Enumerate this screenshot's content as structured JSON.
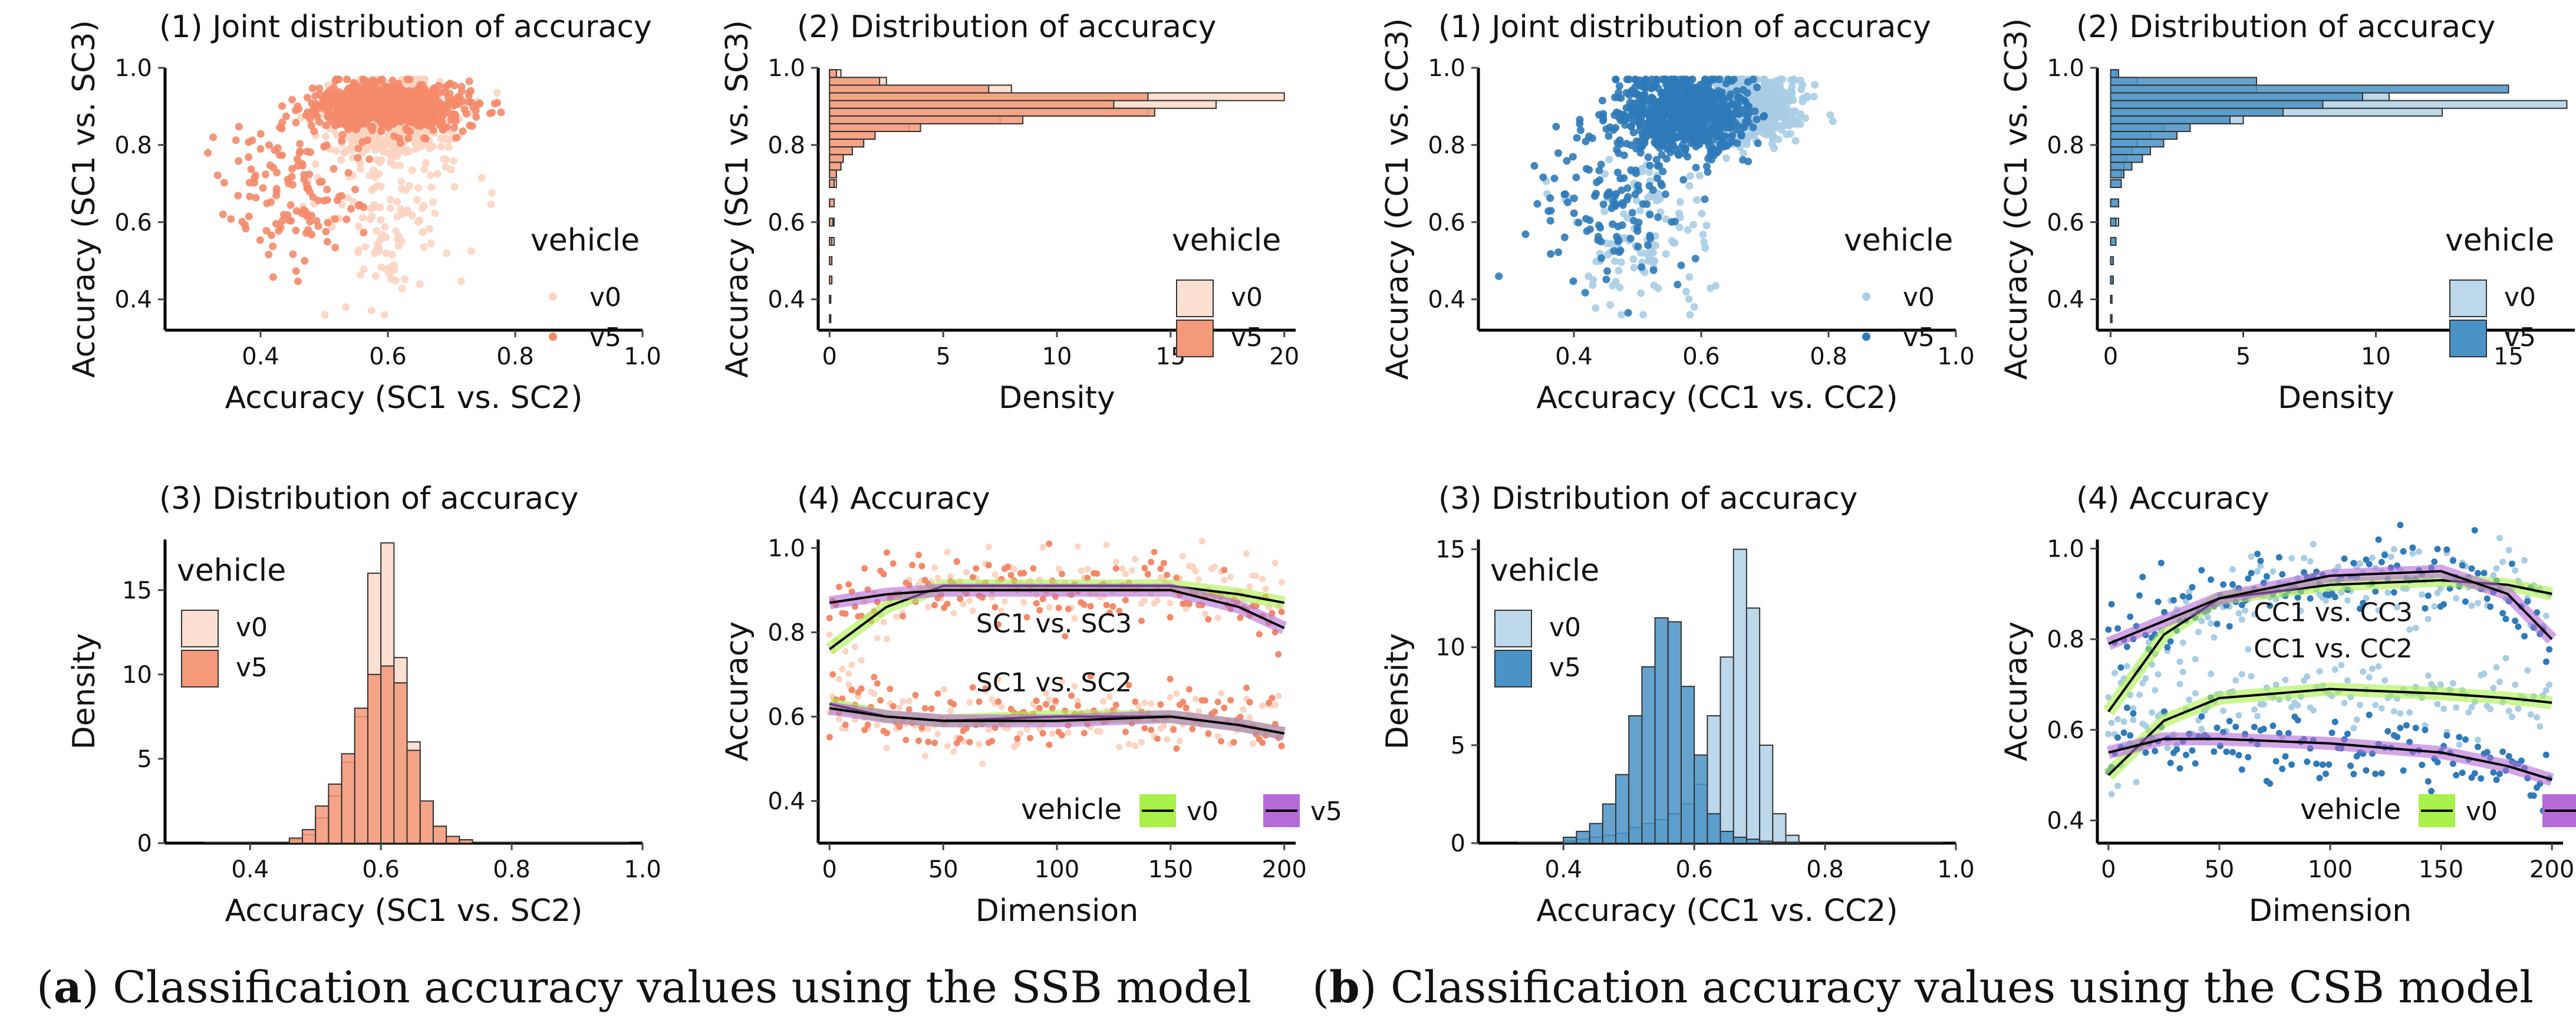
{
  "captions": [
    {
      "tag": "a",
      "text": ") Classification accuracy values using the SSB model",
      "open": "("
    },
    {
      "tag": "b",
      "text": ") Classification accuracy values using the CSB model",
      "open": "("
    }
  ],
  "colors": {
    "ssb_v0": "#fde0d2",
    "ssb_v5": "#f4997a",
    "ssb_v5_point": "#f4896a",
    "ssb_v0_point": "#fbd4c2",
    "csb_v0": "#bcd8ea",
    "csb_v5": "#4a93c6",
    "csb_v5_point": "#2f7ab8",
    "csb_v0_point": "#a9cde4",
    "smooth_v0": "#a8f04a",
    "smooth_v5": "#b46bd6",
    "smooth_line": "#000000"
  },
  "legend": {
    "title": "vehicle",
    "v0": "v0",
    "v5": "v5"
  },
  "chart_data": [
    {
      "id": "ssb1",
      "type": "scatter",
      "panel": "(a)",
      "title": "(1) Joint distribution of accuracy",
      "xlabel": "Accuracy (SC1 vs. SC2)",
      "ylabel": "Accuracy (SC1 vs. SC3)",
      "xlim": [
        0.25,
        1.0
      ],
      "ylim": [
        0.32,
        1.0
      ],
      "xticks": [
        "0.4",
        "0.6",
        "0.8",
        "1.0"
      ],
      "yticks": [
        "0.4",
        "0.6",
        "0.8",
        "1.0"
      ],
      "series": [
        {
          "name": "v0",
          "center": [
            0.6,
            0.86
          ],
          "spread": [
            0.05,
            0.05
          ],
          "tail": [
            0.6,
            0.58
          ],
          "count": 700
        },
        {
          "name": "v5",
          "center": [
            0.6,
            0.9
          ],
          "spread": [
            0.06,
            0.03
          ],
          "tail": [
            0.45,
            0.7
          ],
          "count": 900
        }
      ]
    },
    {
      "id": "ssb2",
      "type": "bar",
      "orientation": "horizontal",
      "panel": "(a)",
      "title": "(2) Distribution of accuracy",
      "xlabel": "Density",
      "ylabel": "Accuracy (SC1 vs. SC3)",
      "xlim": [
        -0.5,
        20.5
      ],
      "ylim": [
        0.32,
        1.0
      ],
      "xticks": [
        "0",
        "5",
        "10",
        "15",
        "20"
      ],
      "yticks": [
        "0.4",
        "0.6",
        "0.8",
        "1.0"
      ],
      "bins": [
        0.985,
        0.965,
        0.945,
        0.925,
        0.905,
        0.885,
        0.865,
        0.845,
        0.825,
        0.805,
        0.785,
        0.765,
        0.745,
        0.725,
        0.7,
        0.65,
        0.6,
        0.55,
        0.5,
        0.45,
        0.4,
        0.35
      ],
      "series": [
        {
          "name": "v0",
          "values": [
            0.5,
            2.5,
            8,
            20,
            17,
            14,
            7.5,
            3.5,
            2,
            1.5,
            1,
            0.6,
            0.5,
            0.3,
            0.3,
            0.2,
            0.2,
            0.2,
            0.1,
            0.1,
            0.05,
            0.05
          ]
        },
        {
          "name": "v5",
          "values": [
            0.3,
            2.2,
            7,
            14,
            12.5,
            14.3,
            8.5,
            4,
            2,
            1.5,
            1,
            0.6,
            0.5,
            0.3,
            0.2,
            0.2,
            0.15,
            0.1,
            0.1,
            0.1,
            0.05,
            0.05
          ]
        }
      ]
    },
    {
      "id": "ssb3",
      "type": "bar",
      "panel": "(a)",
      "title": "(3) Distribution of accuracy",
      "xlabel": "Accuracy (SC1 vs. SC2)",
      "ylabel": "Density",
      "xlim": [
        0.27,
        1.0
      ],
      "ylim": [
        0,
        18
      ],
      "xticks": [
        "0.4",
        "0.6",
        "0.8",
        "1.0"
      ],
      "yticks": [
        "0",
        "5",
        "10",
        "15"
      ],
      "bins": [
        0.47,
        0.49,
        0.51,
        0.53,
        0.55,
        0.57,
        0.59,
        0.61,
        0.63,
        0.65,
        0.67,
        0.69,
        0.71,
        0.73
      ],
      "series": [
        {
          "name": "v0",
          "values": [
            0.2,
            0.5,
            1.5,
            2.8,
            4.8,
            7.5,
            16,
            17.8,
            11,
            6,
            2.5,
            1,
            0.4,
            0.2
          ]
        },
        {
          "name": "v5",
          "values": [
            0.3,
            0.8,
            2.2,
            3.5,
            5.3,
            8,
            10,
            10.5,
            9.5,
            5.5,
            2.5,
            1,
            0.4,
            0.2
          ]
        }
      ]
    },
    {
      "id": "ssb4",
      "type": "line",
      "panel": "(a)",
      "title": "(4) Accuracy",
      "xlabel": "Dimension",
      "ylabel": "Accuracy",
      "xlim": [
        -5,
        205
      ],
      "ylim": [
        0.3,
        1.02
      ],
      "xticks": [
        "0",
        "50",
        "100",
        "150",
        "200"
      ],
      "yticks": [
        "0.4",
        "0.6",
        "0.8",
        "1.0"
      ],
      "annotations": [
        "SC1 vs. SC3",
        "SC1 vs. SC2"
      ],
      "series": [
        {
          "name": "v0 SC1 vs. SC3",
          "x": [
            0,
            25,
            50,
            100,
            150,
            180,
            200
          ],
          "y": [
            0.76,
            0.86,
            0.91,
            0.91,
            0.91,
            0.89,
            0.87
          ]
        },
        {
          "name": "v5 SC1 vs. SC3",
          "x": [
            0,
            25,
            50,
            100,
            150,
            180,
            200
          ],
          "y": [
            0.87,
            0.89,
            0.9,
            0.9,
            0.9,
            0.86,
            0.81
          ]
        },
        {
          "name": "v0 SC1 vs. SC2",
          "x": [
            0,
            25,
            50,
            100,
            150,
            180,
            200
          ],
          "y": [
            0.63,
            0.6,
            0.59,
            0.6,
            0.6,
            0.58,
            0.56
          ]
        },
        {
          "name": "v5 SC1 vs. SC2",
          "x": [
            0,
            25,
            50,
            100,
            150,
            180,
            200
          ],
          "y": [
            0.62,
            0.6,
            0.59,
            0.59,
            0.6,
            0.58,
            0.56
          ]
        }
      ]
    },
    {
      "id": "csb1",
      "type": "scatter",
      "panel": "(b)",
      "title": "(1) Joint distribution of accuracy",
      "xlabel": "Accuracy (CC1 vs. CC2)",
      "ylabel": "Accuracy (CC1 vs. CC3)",
      "xlim": [
        0.25,
        1.0
      ],
      "ylim": [
        0.32,
        1.0
      ],
      "xticks": [
        "0.4",
        "0.6",
        "0.8",
        "1.0"
      ],
      "yticks": [
        "0.4",
        "0.6",
        "0.8",
        "1.0"
      ],
      "series": [
        {
          "name": "v0",
          "center": [
            0.67,
            0.9
          ],
          "spread": [
            0.04,
            0.04
          ],
          "tail": [
            0.5,
            0.55
          ],
          "count": 800
        },
        {
          "name": "v5",
          "center": [
            0.57,
            0.88
          ],
          "spread": [
            0.05,
            0.05
          ],
          "tail": [
            0.47,
            0.65
          ],
          "count": 900
        }
      ]
    },
    {
      "id": "csb2",
      "type": "bar",
      "orientation": "horizontal",
      "panel": "(b)",
      "title": "(2) Distribution of accuracy",
      "xlabel": "Density",
      "ylabel": "Accuracy (CC1 vs. CC3)",
      "xlim": [
        -0.5,
        17.5
      ],
      "ylim": [
        0.32,
        1.0
      ],
      "xticks": [
        "0",
        "5",
        "10",
        "15"
      ],
      "yticks": [
        "0.4",
        "0.6",
        "0.8",
        "1.0"
      ],
      "bins": [
        0.985,
        0.965,
        0.945,
        0.925,
        0.905,
        0.885,
        0.865,
        0.845,
        0.825,
        0.805,
        0.785,
        0.765,
        0.745,
        0.725,
        0.7,
        0.65,
        0.6,
        0.55,
        0.5,
        0.45,
        0.4,
        0.35
      ],
      "series": [
        {
          "name": "v0",
          "values": [
            0.2,
            1,
            5.5,
            10.5,
            17.2,
            12.5,
            5,
            2,
            1.5,
            1,
            0.8,
            0.6,
            0.5,
            0.4,
            0.4,
            0.3,
            0.3,
            0.2,
            0.1,
            0.05,
            0.05,
            0.05
          ]
        },
        {
          "name": "v5",
          "values": [
            0.3,
            5.5,
            15,
            9.5,
            8,
            6.5,
            4.5,
            3,
            2.5,
            2,
            1.5,
            1.2,
            0.8,
            0.5,
            0.4,
            0.3,
            0.2,
            0.2,
            0.1,
            0.1,
            0.05,
            0.05
          ]
        }
      ]
    },
    {
      "id": "csb3",
      "type": "bar",
      "panel": "(b)",
      "title": "(3) Distribution of accuracy",
      "xlabel": "Accuracy (CC1 vs. CC2)",
      "ylabel": "Density",
      "xlim": [
        0.27,
        1.0
      ],
      "ylim": [
        0,
        15.5
      ],
      "xticks": [
        "0.4",
        "0.6",
        "0.8",
        "1.0"
      ],
      "yticks": [
        "0",
        "5",
        "10",
        "15"
      ],
      "bins": [
        0.41,
        0.43,
        0.45,
        0.47,
        0.49,
        0.51,
        0.53,
        0.55,
        0.57,
        0.59,
        0.61,
        0.63,
        0.65,
        0.67,
        0.69,
        0.71,
        0.73,
        0.75
      ],
      "series": [
        {
          "name": "v0",
          "values": [
            0.1,
            0.2,
            0.3,
            0.4,
            0.5,
            0.8,
            1,
            1.2,
            1.5,
            2,
            3,
            6.5,
            9.5,
            15,
            12,
            5,
            1.5,
            0.4
          ]
        },
        {
          "name": "v5",
          "values": [
            0.3,
            0.6,
            1,
            2,
            3.5,
            6.5,
            9,
            11.5,
            11.3,
            8,
            4.5,
            1.5,
            0.6,
            0.3,
            0.2,
            0.1,
            0.05,
            0.05
          ]
        }
      ]
    },
    {
      "id": "csb4",
      "type": "line",
      "panel": "(b)",
      "title": "(4) Accuracy",
      "xlabel": "Dimension",
      "ylabel": "Accuracy",
      "xlim": [
        -5,
        205
      ],
      "ylim": [
        0.35,
        1.02
      ],
      "xticks": [
        "0",
        "50",
        "100",
        "150",
        "200"
      ],
      "yticks": [
        "0.4",
        "0.6",
        "0.8",
        "1.0"
      ],
      "annotations": [
        "CC1 vs. CC3",
        "CC1 vs. CC2"
      ],
      "series": [
        {
          "name": "v0 CC1 vs. CC3",
          "x": [
            0,
            25,
            50,
            100,
            150,
            180,
            200
          ],
          "y": [
            0.64,
            0.81,
            0.89,
            0.92,
            0.93,
            0.92,
            0.9
          ]
        },
        {
          "name": "v5 CC1 vs. CC3",
          "x": [
            0,
            25,
            50,
            100,
            150,
            180,
            200
          ],
          "y": [
            0.79,
            0.84,
            0.89,
            0.94,
            0.95,
            0.9,
            0.8
          ]
        },
        {
          "name": "v0 CC1 vs. CC2",
          "x": [
            0,
            25,
            50,
            100,
            150,
            180,
            200
          ],
          "y": [
            0.5,
            0.62,
            0.67,
            0.69,
            0.68,
            0.67,
            0.66
          ]
        },
        {
          "name": "v5 CC1 vs. CC2",
          "x": [
            0,
            25,
            50,
            100,
            150,
            180,
            200
          ],
          "y": [
            0.55,
            0.58,
            0.58,
            0.57,
            0.55,
            0.52,
            0.49
          ]
        }
      ]
    }
  ]
}
